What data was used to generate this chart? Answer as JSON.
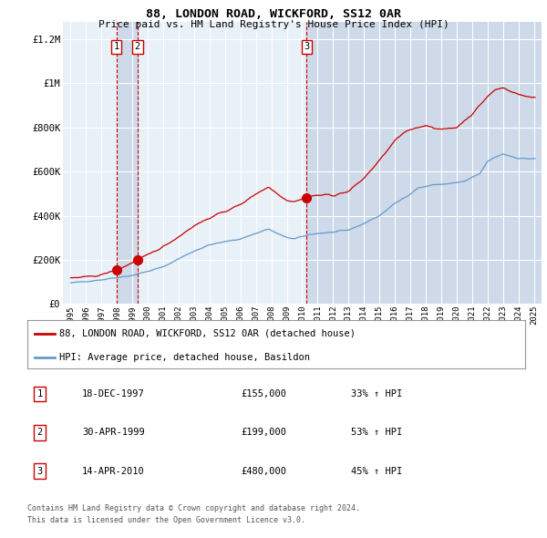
{
  "title": "88, LONDON ROAD, WICKFORD, SS12 0AR",
  "subtitle": "Price paid vs. HM Land Registry's House Price Index (HPI)",
  "legend_line1": "88, LONDON ROAD, WICKFORD, SS12 0AR (detached house)",
  "legend_line2": "HPI: Average price, detached house, Basildon",
  "footnote1": "Contains HM Land Registry data © Crown copyright and database right 2024.",
  "footnote2": "This data is licensed under the Open Government Licence v3.0.",
  "transactions": [
    {
      "num": 1,
      "date": "18-DEC-1997",
      "price": 155000,
      "pct": "33%",
      "dir": "↑",
      "year": 1997.96
    },
    {
      "num": 2,
      "date": "30-APR-1999",
      "price": 199000,
      "pct": "53%",
      "dir": "↑",
      "year": 1999.33
    },
    {
      "num": 3,
      "date": "14-APR-2010",
      "price": 480000,
      "pct": "45%",
      "dir": "↑",
      "year": 2010.28
    }
  ],
  "red_color": "#cc0000",
  "blue_color": "#6699cc",
  "plot_bg": "#e8f0f8",
  "grid_color": "#ffffff",
  "vband_color": "#ccd8e8",
  "xlim": [
    1994.5,
    2025.5
  ],
  "ylim": [
    0,
    1280000
  ],
  "yticks": [
    0,
    200000,
    400000,
    600000,
    800000,
    1000000,
    1200000
  ],
  "ytick_labels": [
    "£0",
    "£200K",
    "£400K",
    "£600K",
    "£800K",
    "£1M",
    "£1.2M"
  ],
  "xticks": [
    1995,
    1996,
    1997,
    1998,
    1999,
    2000,
    2001,
    2002,
    2003,
    2004,
    2005,
    2006,
    2007,
    2008,
    2009,
    2010,
    2011,
    2012,
    2013,
    2014,
    2015,
    2016,
    2017,
    2018,
    2019,
    2020,
    2021,
    2022,
    2023,
    2024,
    2025
  ],
  "hpi_anchors": {
    "1995.0": 95000,
    "1997.0": 110000,
    "1998.0": 120000,
    "1999.0": 130000,
    "2000.0": 148000,
    "2001.0": 168000,
    "2002.0": 205000,
    "2003.0": 240000,
    "2004.0": 268000,
    "2005.0": 282000,
    "2006.0": 295000,
    "2007.0": 320000,
    "2007.8": 340000,
    "2008.8": 305000,
    "2009.5": 295000,
    "2010.0": 305000,
    "2010.5": 315000,
    "2011.0": 320000,
    "2012.0": 325000,
    "2013.0": 335000,
    "2014.0": 365000,
    "2015.0": 400000,
    "2016.0": 455000,
    "2016.8": 490000,
    "2017.5": 525000,
    "2018.5": 540000,
    "2019.5": 545000,
    "2020.5": 555000,
    "2021.5": 590000,
    "2022.0": 645000,
    "2022.5": 665000,
    "2023.0": 680000,
    "2023.5": 670000,
    "2024.0": 660000,
    "2025.0": 658000
  },
  "red_anchors": {
    "1995.0": 118000,
    "1996.0": 122000,
    "1997.0": 132000,
    "1997.96": 155000,
    "1998.5": 170000,
    "1999.33": 199000,
    "2000.0": 222000,
    "2001.0": 260000,
    "2002.0": 305000,
    "2003.0": 355000,
    "2004.0": 390000,
    "2005.0": 420000,
    "2006.0": 450000,
    "2007.0": 500000,
    "2007.8": 530000,
    "2008.5": 495000,
    "2009.0": 470000,
    "2009.5": 465000,
    "2010.28": 480000,
    "2010.5": 488000,
    "2011.0": 492000,
    "2011.5": 495000,
    "2012.0": 492000,
    "2013.0": 510000,
    "2014.0": 570000,
    "2015.0": 650000,
    "2016.0": 740000,
    "2016.5": 770000,
    "2017.0": 790000,
    "2017.5": 800000,
    "2018.0": 810000,
    "2018.5": 800000,
    "2019.0": 790000,
    "2019.5": 795000,
    "2020.0": 800000,
    "2020.5": 830000,
    "2021.0": 860000,
    "2021.5": 900000,
    "2022.0": 940000,
    "2022.5": 970000,
    "2023.0": 980000,
    "2023.5": 965000,
    "2024.0": 950000,
    "2024.5": 940000,
    "2025.0": 938000
  }
}
